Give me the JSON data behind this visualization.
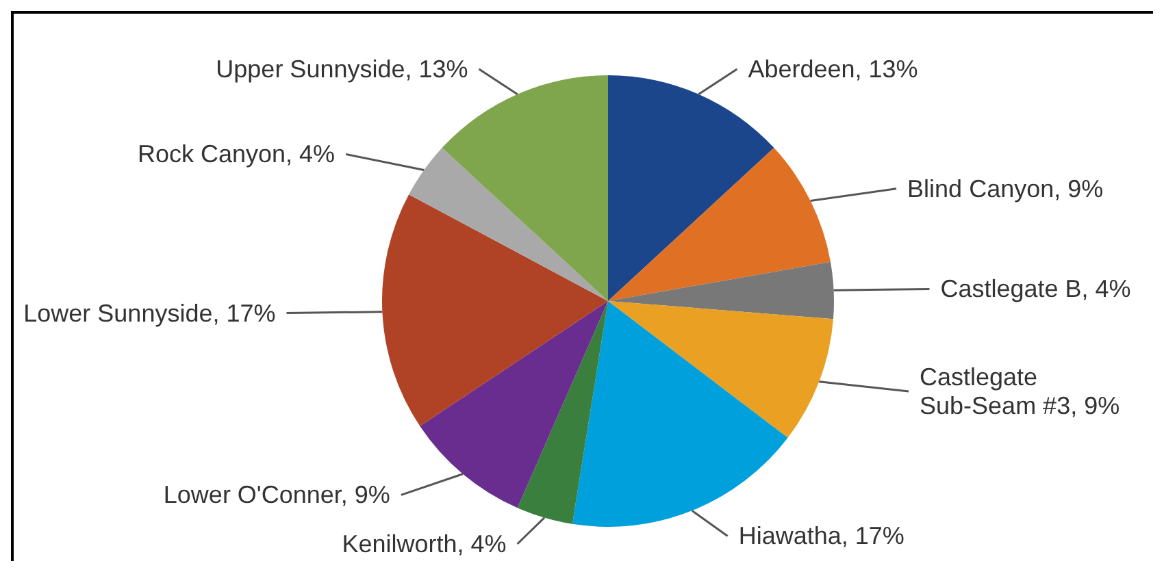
{
  "chart_data": {
    "type": "pie",
    "categories": [
      "Aberdeen",
      "Blind Canyon",
      "Castlegate B",
      "Castlegate Sub-Seam #3",
      "Hiawatha",
      "Kenilworth",
      "Lower O'Conner",
      "Lower Sunnyside",
      "Rock Canyon",
      "Upper Sunnyside"
    ],
    "values": [
      13,
      9,
      4,
      9,
      17,
      4,
      9,
      17,
      4,
      13
    ],
    "colors": [
      "#1b468c",
      "#e07124",
      "#787878",
      "#e9a023",
      "#00a0dc",
      "#3a7f3e",
      "#682d8e",
      "#b04325",
      "#a9a9a9",
      "#7fa54d"
    ],
    "value_labels": [
      "13%",
      "9%",
      "4%",
      "9%",
      "17%",
      "4%",
      "9%",
      "17%",
      "4%",
      "13%"
    ]
  }
}
